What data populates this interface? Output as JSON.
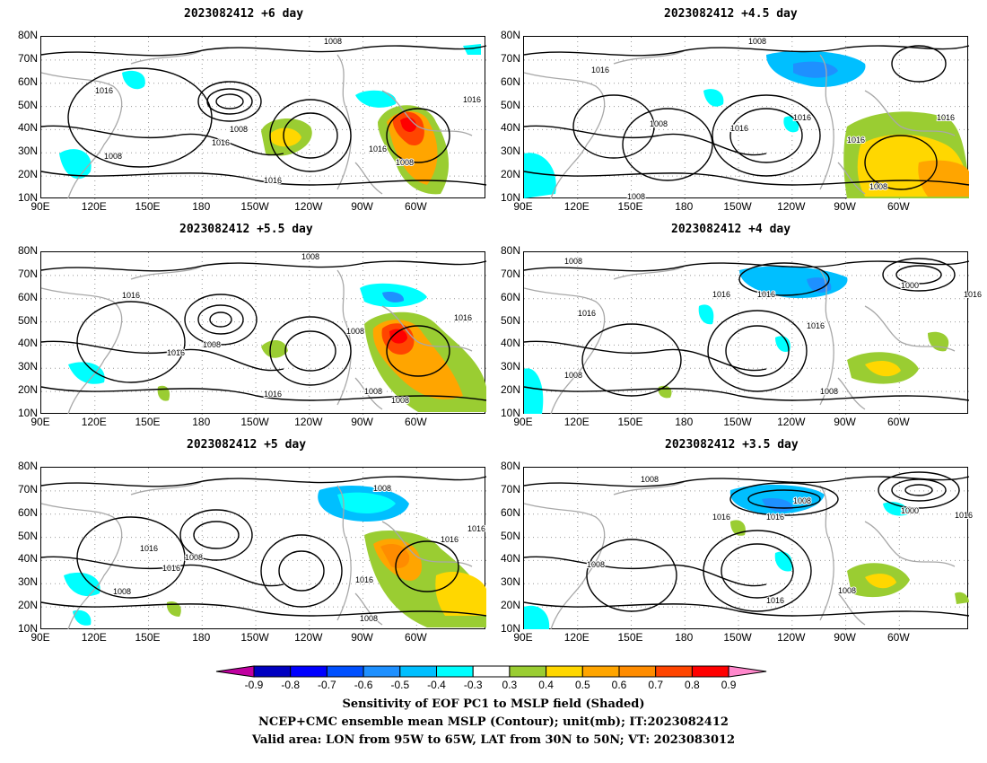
{
  "panels": [
    {
      "title": "2023082412 +6 day",
      "labels": [
        "1016",
        "1008",
        "1016",
        "1008",
        "1016",
        "1008",
        "1016",
        "1016",
        "1008"
      ]
    },
    {
      "title": "2023082412 +4.5 day",
      "labels": [
        "1008",
        "1016",
        "1008",
        "1016",
        "1016",
        "1016",
        "1016",
        "1008",
        "1008"
      ]
    },
    {
      "title": "2023082412 +5.5 day",
      "labels": [
        "1008",
        "1016",
        "1008",
        "1016",
        "1016",
        "1008",
        "1016",
        "1008",
        "1008"
      ]
    },
    {
      "title": "2023082412 +4 day",
      "labels": [
        "1008",
        "1016",
        "1016",
        "1008",
        "1016",
        "1016",
        "1000",
        "1016",
        "1008"
      ]
    },
    {
      "title": "2023082412 +5 day",
      "labels": [
        "1008",
        "1016",
        "1008",
        "1016",
        "1008",
        "1016",
        "1016",
        "1008",
        "1016"
      ]
    },
    {
      "title": "2023082412 +3.5 day",
      "labels": [
        "1008",
        "1008",
        "1016",
        "1016",
        "1008",
        "1016",
        "1000",
        "1016",
        "1008"
      ]
    }
  ],
  "axes": {
    "y_ticks": [
      "80N",
      "70N",
      "60N",
      "50N",
      "40N",
      "30N",
      "20N",
      "10N"
    ],
    "x_ticks": [
      "90E",
      "120E",
      "150E",
      "180",
      "150W",
      "120W",
      "90W",
      "60W"
    ]
  },
  "colorbar": {
    "labels": [
      "-0.9",
      "-0.8",
      "-0.7",
      "-0.6",
      "-0.5",
      "-0.4",
      "-0.3",
      "0.3",
      "0.4",
      "0.5",
      "0.6",
      "0.7",
      "0.8",
      "0.9"
    ],
    "colors": [
      "#c000a0",
      "#0000c0",
      "#0000ff",
      "#0050ff",
      "#1e90ff",
      "#00bfff",
      "#00ffff",
      "#ffffff",
      "#9acd32",
      "#ffd700",
      "#ffa500",
      "#ff8c00",
      "#ff4500",
      "#ff0000",
      "#ff88cc"
    ]
  },
  "captions": [
    "Sensitivity of EOF PC1 to MSLP field (Shaded)",
    "NCEP+CMC ensemble mean MSLP (Contour); unit(mb); IT:2023082412",
    "Valid area: LON from 95W to 65W, LAT from 30N to 50N; VT: 2023083012"
  ]
}
